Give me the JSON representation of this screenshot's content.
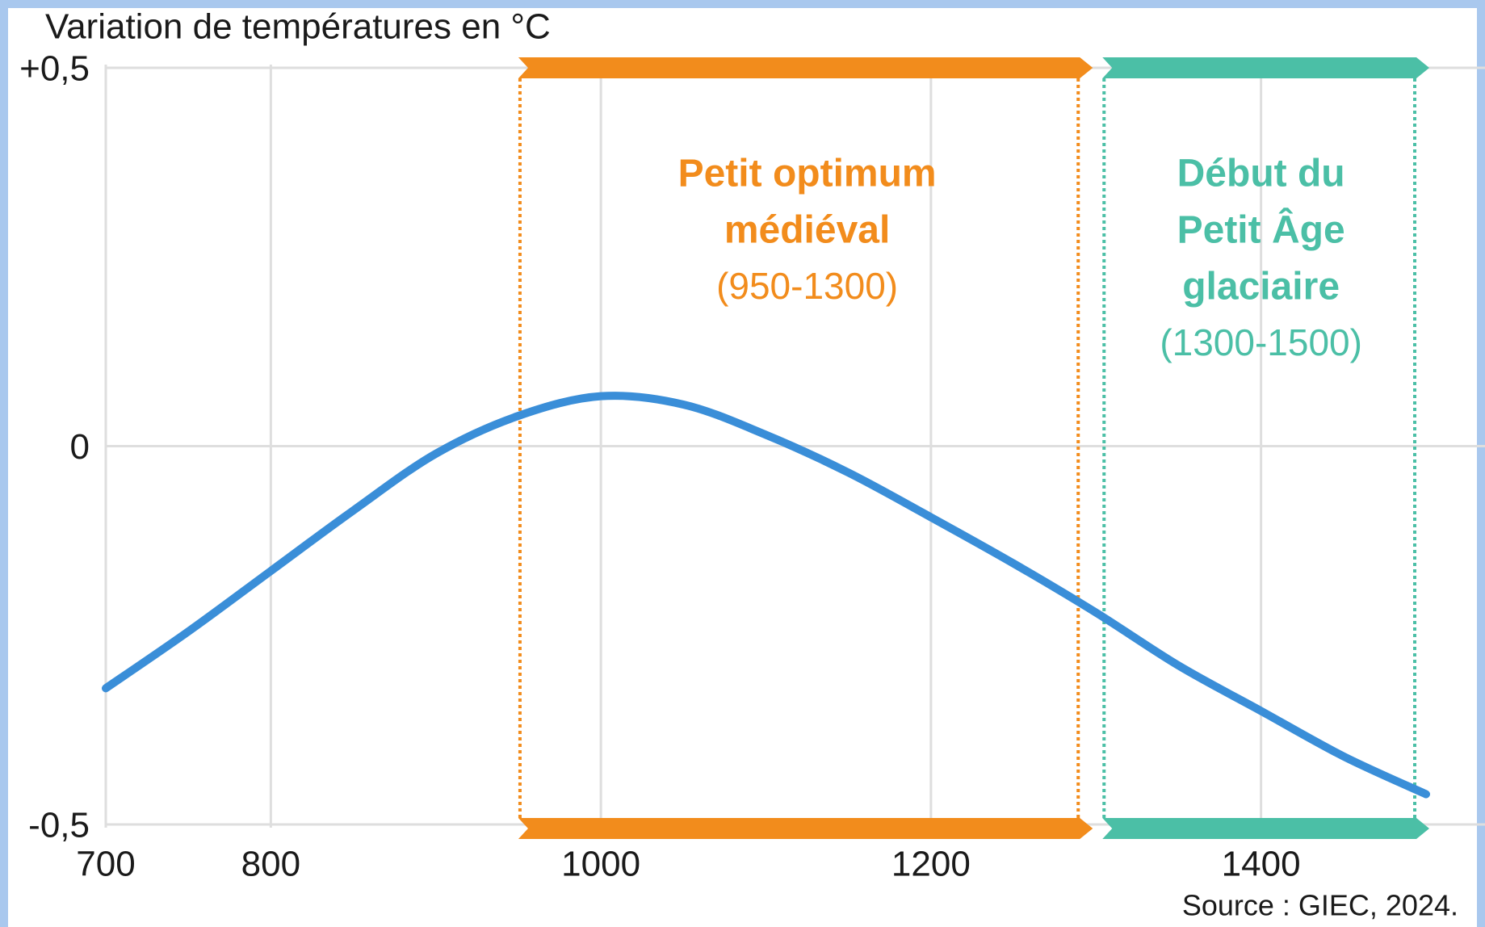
{
  "chart_data": {
    "type": "line",
    "title": "Variation de températures en °C",
    "source": "Source : GIEC, 2024.",
    "x": [
      700,
      750,
      800,
      850,
      900,
      950,
      1000,
      1050,
      1100,
      1150,
      1200,
      1250,
      1300,
      1350,
      1400,
      1450,
      1500
    ],
    "series": [
      {
        "color": "#3a8ed8",
        "values": [
          -0.32,
          -0.245,
          -0.165,
          -0.085,
          -0.01,
          0.04,
          0.066,
          0.055,
          0.015,
          -0.035,
          -0.094,
          -0.155,
          -0.22,
          -0.29,
          -0.35,
          -0.41,
          -0.46
        ]
      }
    ],
    "xlim": [
      700,
      1500
    ],
    "ylim": [
      -0.5,
      0.5
    ],
    "xticks": [
      700,
      800,
      1000,
      1200,
      1400
    ],
    "yticks": [
      {
        "value": -0.5,
        "label": "-0,5"
      },
      0,
      {
        "value": 0.5,
        "label": "+0,5"
      }
    ],
    "grid": true,
    "periods": [
      {
        "label": [
          "Petit optimum",
          "médiéval"
        ],
        "range": "(950-1300)",
        "start": 950,
        "end": 1300,
        "color": "#f28c1c"
      },
      {
        "label": [
          "Début du",
          "Petit Âge",
          "glaciaire"
        ],
        "range": "(1300-1500)",
        "start": 1300,
        "end": 1500,
        "color": "#4bbfa6"
      }
    ]
  }
}
